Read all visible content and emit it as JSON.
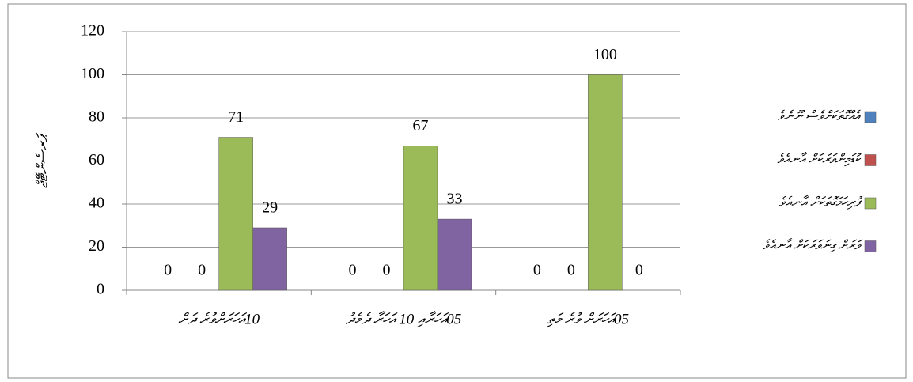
{
  "chart_data": {
    "type": "bar",
    "y_label": "ޕަރސެންޓޭޖް",
    "categories": [
      "10އަހަރަށްވުރެ ދަށް",
      "05އަހަރާއި 10 އަހަރާ ދެމެދު",
      "05އަހަރަށް ވުރެ މަތި"
    ],
    "series": [
      {
        "name": "އެއްގޮތަކަށްވެސް ނޫނެވެ",
        "color": "#4f81bd",
        "values": [
          0,
          0,
          0
        ]
      },
      {
        "name": "ކުޑަމިންވަރަކަށް އާނއެވެ",
        "color": "#c0504d",
        "values": [
          0,
          0,
          0
        ]
      },
      {
        "name": "ފުރިހަމަގޮތަކަށް އާނއެވެ",
        "color": "#9bbb59",
        "values": [
          71,
          67,
          100
        ]
      },
      {
        "name": "ވަރަށް ގިނަވަރަކަށް އާނއެވެ",
        "color": "#8064a2",
        "values": [
          29,
          33,
          0
        ]
      }
    ],
    "ylim": [
      0,
      120
    ],
    "yticks": [
      0,
      20,
      40,
      60,
      80,
      100,
      120
    ],
    "grid": true,
    "legend": "right"
  }
}
